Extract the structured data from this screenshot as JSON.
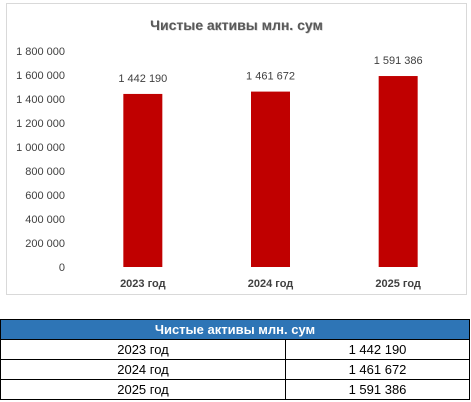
{
  "chart_data": {
    "type": "bar",
    "title": "Чистые активы млн. сум",
    "categories": [
      "2023 год",
      "2024 год",
      "2025 год"
    ],
    "values": [
      1442190,
      1461672,
      1591386
    ],
    "value_labels": [
      "1 442 190",
      "1 461 672",
      "1 591 386"
    ],
    "ylim": [
      0,
      1800000
    ],
    "yticks": [
      0,
      200000,
      400000,
      600000,
      800000,
      1000000,
      1200000,
      1400000,
      1600000,
      1800000
    ],
    "ytick_labels": [
      "0",
      "200 000",
      "400 000",
      "600 000",
      "800 000",
      "1 000 000",
      "1 200 000",
      "1 400 000",
      "1 600 000",
      "1 800 000"
    ],
    "bar_color": "#c00000",
    "grid": false,
    "legend": "none"
  },
  "table": {
    "header": "Чистые активы млн. сум",
    "header_color": "#2e75b6",
    "rows": [
      {
        "label": "2023 год",
        "value": "1 442 190"
      },
      {
        "label": "2024 год",
        "value": "1 461 672"
      },
      {
        "label": "2025 год",
        "value": "1 591 386"
      }
    ]
  }
}
